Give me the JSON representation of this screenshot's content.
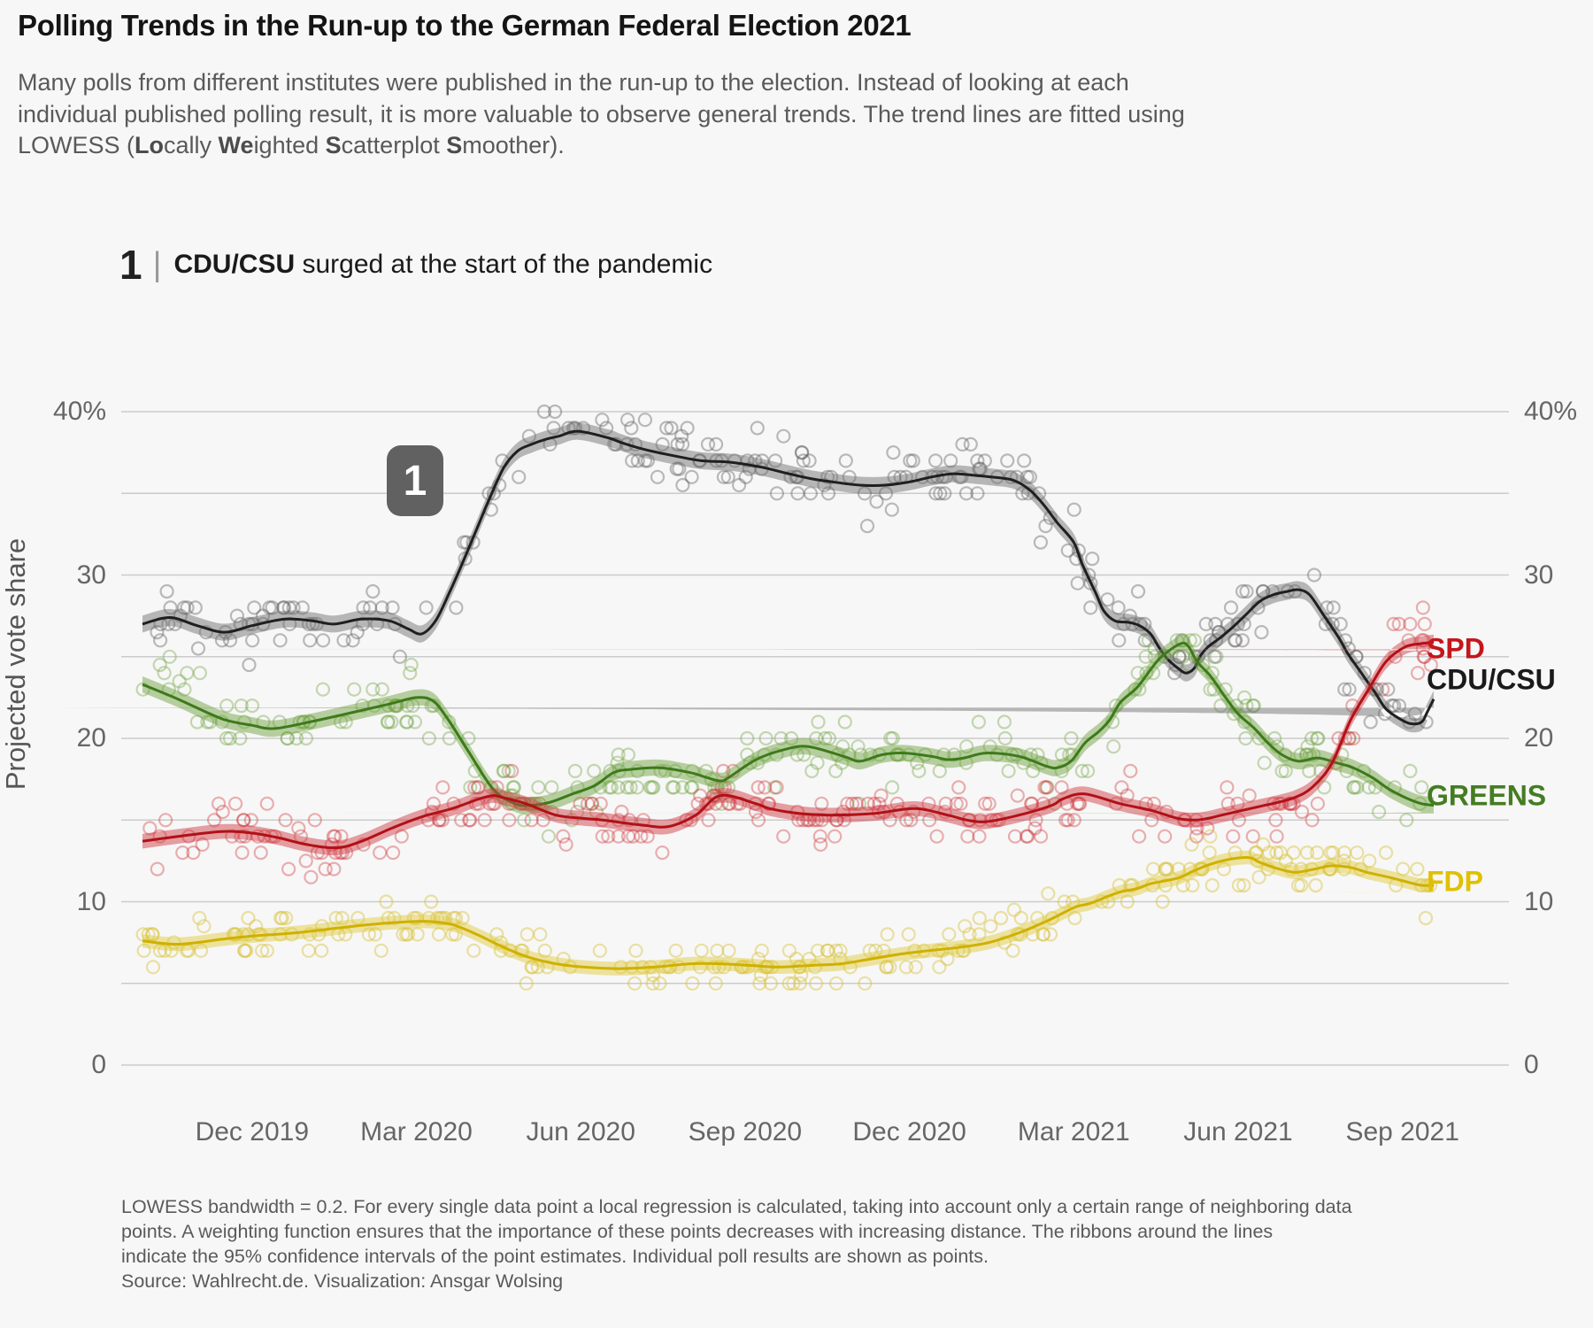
{
  "header": {
    "title": "Polling Trends in the Run-up to the German Federal Election 2021",
    "subtitle_lines": [
      [
        {
          "t": "Many polls from different institutes were published in the run-up to the election. Instead of looking at each",
          "b": false
        }
      ],
      [
        {
          "t": "individual published polling result, it is more valuable to observe general trends. The trend lines are fitted using",
          "b": false
        }
      ],
      [
        {
          "t": "LOWESS (",
          "b": false
        },
        {
          "t": "Lo",
          "b": true
        },
        {
          "t": "cally ",
          "b": false
        },
        {
          "t": "We",
          "b": true
        },
        {
          "t": "ighted ",
          "b": false
        },
        {
          "t": "S",
          "b": true
        },
        {
          "t": "catterplot ",
          "b": false
        },
        {
          "t": "S",
          "b": true
        },
        {
          "t": "moother).",
          "b": false
        }
      ]
    ]
  },
  "panel_header": {
    "segments": [
      {
        "text": "1",
        "style": "num"
      },
      {
        "text": "|",
        "style": "bar"
      },
      {
        "text": "CDU/CSU",
        "style": "bold"
      },
      {
        "text": " surged at the start of the pandemic",
        "style": "plain"
      }
    ]
  },
  "badge": {
    "label": "1"
  },
  "caption": {
    "lines": [
      "LOWESS bandwidth = 0.2. For every single data point a local regression is calculated, taking into account only a certain range of neighboring data",
      "points. A weighting function ensures that the importance of these points decreases with increasing distance. The ribbons around the lines",
      "indicate the 95% confidence intervals of the point estimates. Individual poll results are shown as points.",
      "Source: Wahlrecht.de. Visualization: Ansgar Wolsing"
    ]
  },
  "chart_data": {
    "type": "scatter",
    "description": "Poll results (points) with LOWESS trend lines and 95% CI ribbons; x = months since Oct 2019, y = projected vote share (%).",
    "x_unit": "months since Oct 2019",
    "x_range": [
      0,
      23.57
    ],
    "ylim": [
      0,
      40
    ],
    "grid_step": 5,
    "ylabel": "Projected vote share",
    "y_ticks": [
      {
        "v": 40,
        "label": "40%"
      },
      {
        "v": 30,
        "label": "30"
      },
      {
        "v": 20,
        "label": "20"
      },
      {
        "v": 10,
        "label": "10"
      },
      {
        "v": 0,
        "label": "0"
      }
    ],
    "x_ticks": [
      {
        "t": 2,
        "label": "Dec 2019"
      },
      {
        "t": 5,
        "label": "Mar 2020"
      },
      {
        "t": 8,
        "label": "Jun 2020"
      },
      {
        "t": 11,
        "label": "Sep 2020"
      },
      {
        "t": 14,
        "label": "Dec 2020"
      },
      {
        "t": 17,
        "label": "Mar 2021"
      },
      {
        "t": 20,
        "label": "Jun 2021"
      },
      {
        "t": 23,
        "label": "Sep 2021"
      }
    ],
    "grid_color": "#cbcbcb",
    "annotation_badge": {
      "label": "1",
      "t": 4.6,
      "v": 35.8
    },
    "scatter": {
      "points_per_series": 250,
      "value_rounding": 0.5,
      "note": "individual poll results scattered around trend"
    },
    "series": [
      {
        "name": "CDU/CSU",
        "label": "CDU/CSU",
        "label_v": 23.6,
        "colors": {
          "line": "#1f1f1f",
          "ribbon": "#6e6e6e",
          "point": "#5a5a5a",
          "label": "#1a1a1a"
        },
        "ribbon_halfwidth": 0.52,
        "point_opacity": 0.4,
        "scatter_sigma": 0.95,
        "clamp_max": 40,
        "trend": [
          [
            0,
            27.0
          ],
          [
            0.5,
            27.4
          ],
          [
            1,
            26.9
          ],
          [
            1.5,
            26.5
          ],
          [
            2,
            26.9
          ],
          [
            2.6,
            27.3
          ],
          [
            3.1,
            27.2
          ],
          [
            3.5,
            27.0
          ],
          [
            4,
            27.3
          ],
          [
            4.5,
            27.2
          ],
          [
            4.85,
            26.7
          ],
          [
            5.1,
            26.4
          ],
          [
            5.35,
            27.2
          ],
          [
            5.6,
            28.9
          ],
          [
            5.85,
            30.8
          ],
          [
            6.1,
            32.8
          ],
          [
            6.35,
            34.8
          ],
          [
            6.6,
            36.6
          ],
          [
            6.85,
            37.6
          ],
          [
            7.1,
            38.0
          ],
          [
            7.35,
            38.3
          ],
          [
            7.6,
            38.5
          ],
          [
            7.95,
            38.8
          ],
          [
            8.5,
            38.4
          ],
          [
            8.75,
            38.1
          ],
          [
            9.15,
            37.7
          ],
          [
            9.7,
            37.3
          ],
          [
            10.2,
            37.0
          ],
          [
            10.75,
            36.9
          ],
          [
            11.3,
            36.6
          ],
          [
            11.8,
            36.2
          ],
          [
            12.2,
            35.9
          ],
          [
            12.6,
            35.7
          ],
          [
            13.1,
            35.5
          ],
          [
            13.55,
            35.5
          ],
          [
            14,
            35.7
          ],
          [
            14.4,
            36.0
          ],
          [
            14.8,
            36.2
          ],
          [
            15.2,
            36.1
          ],
          [
            15.5,
            36.0
          ],
          [
            15.9,
            35.8
          ],
          [
            16.2,
            35.2
          ],
          [
            16.45,
            34.3
          ],
          [
            16.7,
            33.2
          ],
          [
            17,
            32.0
          ],
          [
            17.15,
            30.7
          ],
          [
            17.4,
            28.9
          ],
          [
            17.55,
            27.8
          ],
          [
            17.75,
            27.2
          ],
          [
            18,
            27.1
          ],
          [
            18.2,
            26.9
          ],
          [
            18.4,
            26.4
          ],
          [
            18.55,
            25.6
          ],
          [
            18.7,
            24.9
          ],
          [
            18.9,
            24.3
          ],
          [
            19.05,
            24.0
          ],
          [
            19.2,
            24.3
          ],
          [
            19.3,
            25.0
          ],
          [
            19.45,
            25.6
          ],
          [
            19.65,
            26.1
          ],
          [
            19.9,
            26.8
          ],
          [
            20.15,
            27.6
          ],
          [
            20.4,
            28.4
          ],
          [
            20.65,
            28.8
          ],
          [
            20.9,
            29.0
          ],
          [
            21.1,
            29.1
          ],
          [
            21.3,
            28.8
          ],
          [
            21.55,
            27.6
          ],
          [
            21.85,
            26.1
          ],
          [
            22,
            25.2
          ],
          [
            22.25,
            24.0
          ],
          [
            22.5,
            22.8
          ],
          [
            22.7,
            21.8
          ],
          [
            22.95,
            21.2
          ],
          [
            23.15,
            20.9
          ],
          [
            23.35,
            21.0
          ],
          [
            23.45,
            21.6
          ],
          [
            23.57,
            22.4
          ]
        ]
      },
      {
        "name": "GREENS",
        "label": "GREENS",
        "label_v": 16.5,
        "colors": {
          "line": "#3c7a1a",
          "ribbon": "#6fa13f",
          "point": "#74a447",
          "label": "#447d21"
        },
        "ribbon_halfwidth": 0.5,
        "point_opacity": 0.4,
        "scatter_sigma": 0.95,
        "clamp_max": null,
        "trend": [
          [
            0,
            23.3
          ],
          [
            0.65,
            22.4
          ],
          [
            1.45,
            21.2
          ],
          [
            2,
            20.8
          ],
          [
            2.4,
            20.6
          ],
          [
            3.05,
            21.0
          ],
          [
            3.85,
            21.6
          ],
          [
            4.5,
            22.1
          ],
          [
            5,
            22.5
          ],
          [
            5.3,
            22.3
          ],
          [
            5.55,
            21.3
          ],
          [
            5.95,
            19.2
          ],
          [
            6.4,
            16.9
          ],
          [
            6.8,
            16.0
          ],
          [
            7.1,
            15.9
          ],
          [
            7.45,
            16.1
          ],
          [
            7.85,
            16.6
          ],
          [
            8.25,
            17.1
          ],
          [
            8.6,
            17.9
          ],
          [
            8.9,
            18.1
          ],
          [
            9.45,
            18.2
          ],
          [
            10,
            17.9
          ],
          [
            10.3,
            17.6
          ],
          [
            10.55,
            17.4
          ],
          [
            10.7,
            17.6
          ],
          [
            11.2,
            18.7
          ],
          [
            11.7,
            19.3
          ],
          [
            12.15,
            19.5
          ],
          [
            12.8,
            18.9
          ],
          [
            13.1,
            18.6
          ],
          [
            13.5,
            19.0
          ],
          [
            13.9,
            19.1
          ],
          [
            14.4,
            18.9
          ],
          [
            14.7,
            18.7
          ],
          [
            15,
            18.8
          ],
          [
            15.4,
            19.1
          ],
          [
            16,
            18.9
          ],
          [
            16.5,
            18.3
          ],
          [
            16.7,
            18.2
          ],
          [
            16.95,
            18.6
          ],
          [
            17.2,
            19.7
          ],
          [
            17.45,
            20.4
          ],
          [
            17.65,
            21.1
          ],
          [
            17.85,
            22.2
          ],
          [
            18.15,
            23.1
          ],
          [
            18.4,
            24.2
          ],
          [
            18.6,
            25.0
          ],
          [
            18.95,
            25.8
          ],
          [
            19.1,
            25.6
          ],
          [
            19.25,
            24.7
          ],
          [
            19.5,
            23.8
          ],
          [
            19.75,
            22.6
          ],
          [
            20,
            21.5
          ],
          [
            20.3,
            20.6
          ],
          [
            20.55,
            19.7
          ],
          [
            20.8,
            19.0
          ],
          [
            21.1,
            18.6
          ],
          [
            21.45,
            18.8
          ],
          [
            21.8,
            18.5
          ],
          [
            22.1,
            18.2
          ],
          [
            22.45,
            17.6
          ],
          [
            22.75,
            16.9
          ],
          [
            23.1,
            16.3
          ],
          [
            23.35,
            16.0
          ],
          [
            23.57,
            15.9
          ]
        ]
      },
      {
        "name": "SPD",
        "label": "SPD",
        "label_v": 25.5,
        "colors": {
          "line": "#b01116",
          "ribbon": "#cf3b42",
          "point": "#cc2229",
          "label": "#c4161c"
        },
        "ribbon_halfwidth": 0.45,
        "point_opacity": 0.35,
        "scatter_sigma": 0.85,
        "clamp_max": null,
        "trend": [
          [
            0,
            13.7
          ],
          [
            0.65,
            14.0
          ],
          [
            1.45,
            14.3
          ],
          [
            2,
            14.2
          ],
          [
            2.5,
            13.9
          ],
          [
            3,
            13.5
          ],
          [
            3.55,
            13.3
          ],
          [
            4,
            13.7
          ],
          [
            4.55,
            14.5
          ],
          [
            5.1,
            15.2
          ],
          [
            5.65,
            15.7
          ],
          [
            6.15,
            16.3
          ],
          [
            6.4,
            16.5
          ],
          [
            6.55,
            16.4
          ],
          [
            7,
            16.0
          ],
          [
            7.55,
            15.3
          ],
          [
            8.05,
            15.1
          ],
          [
            8.4,
            15.0
          ],
          [
            9.1,
            14.7
          ],
          [
            9.6,
            14.6
          ],
          [
            10.1,
            15.3
          ],
          [
            10.55,
            16.5
          ],
          [
            11.2,
            16.0
          ],
          [
            11.45,
            15.7
          ],
          [
            12,
            15.4
          ],
          [
            12.55,
            15.3
          ],
          [
            13.35,
            15.4
          ],
          [
            14.1,
            15.7
          ],
          [
            14.7,
            15.3
          ],
          [
            15.05,
            15.0
          ],
          [
            15.4,
            14.9
          ],
          [
            16,
            15.3
          ],
          [
            16.6,
            15.9
          ],
          [
            16.8,
            16.3
          ],
          [
            17.2,
            16.6
          ],
          [
            17.85,
            16.0
          ],
          [
            18.4,
            15.6
          ],
          [
            18.9,
            15.1
          ],
          [
            19.2,
            15.0
          ],
          [
            19.45,
            15.1
          ],
          [
            19.7,
            15.3
          ],
          [
            20.35,
            15.8
          ],
          [
            20.75,
            16.1
          ],
          [
            21.05,
            16.4
          ],
          [
            21.35,
            17.0
          ],
          [
            21.7,
            18.4
          ],
          [
            22.05,
            21.1
          ],
          [
            22.4,
            23.1
          ],
          [
            22.7,
            24.7
          ],
          [
            23.05,
            25.6
          ],
          [
            23.35,
            25.8
          ],
          [
            23.57,
            25.9
          ]
        ]
      },
      {
        "name": "FDP",
        "label": "FDP",
        "label_v": 11.2,
        "colors": {
          "line": "#cfb000",
          "ribbon": "#e0cb3c",
          "point": "#d8c23a",
          "label": "#e0c000"
        },
        "ribbon_halfwidth": 0.42,
        "point_opacity": 0.45,
        "scatter_sigma": 0.7,
        "clamp_max": null,
        "trend": [
          [
            0,
            7.6
          ],
          [
            0.65,
            7.4
          ],
          [
            1.45,
            7.7
          ],
          [
            2,
            7.9
          ],
          [
            2.8,
            8.1
          ],
          [
            3.85,
            8.5
          ],
          [
            4.5,
            8.7
          ],
          [
            5.15,
            8.8
          ],
          [
            5.65,
            8.6
          ],
          [
            6.1,
            8.0
          ],
          [
            6.6,
            7.2
          ],
          [
            7.05,
            6.6
          ],
          [
            7.55,
            6.2
          ],
          [
            8.05,
            6.0
          ],
          [
            8.7,
            5.9
          ],
          [
            9.35,
            6.0
          ],
          [
            10,
            6.2
          ],
          [
            10.55,
            6.2
          ],
          [
            11.1,
            6.1
          ],
          [
            11.6,
            6.0
          ],
          [
            12.2,
            6.1
          ],
          [
            12.75,
            6.2
          ],
          [
            13.3,
            6.5
          ],
          [
            13.85,
            6.8
          ],
          [
            14.35,
            7.0
          ],
          [
            14.9,
            7.2
          ],
          [
            15.45,
            7.5
          ],
          [
            16,
            8.1
          ],
          [
            16.5,
            8.8
          ],
          [
            16.8,
            9.3
          ],
          [
            17.05,
            9.7
          ],
          [
            17.3,
            9.9
          ],
          [
            17.6,
            10.3
          ],
          [
            17.85,
            10.6
          ],
          [
            18.15,
            10.8
          ],
          [
            18.4,
            11.1
          ],
          [
            18.7,
            11.3
          ],
          [
            18.95,
            11.5
          ],
          [
            19.2,
            11.9
          ],
          [
            19.5,
            12.3
          ],
          [
            19.85,
            12.6
          ],
          [
            20.2,
            12.7
          ],
          [
            20.4,
            12.4
          ],
          [
            20.75,
            12.0
          ],
          [
            21.05,
            11.8
          ],
          [
            21.4,
            12.0
          ],
          [
            21.7,
            12.2
          ],
          [
            22.05,
            12.1
          ],
          [
            22.35,
            11.8
          ],
          [
            22.75,
            11.5
          ],
          [
            23.1,
            11.2
          ],
          [
            23.35,
            11.0
          ],
          [
            23.57,
            11.0
          ]
        ]
      }
    ]
  }
}
